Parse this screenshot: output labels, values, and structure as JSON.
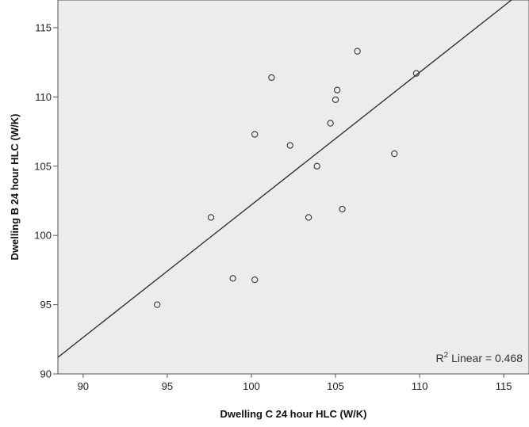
{
  "chart_data": {
    "type": "scatter",
    "xlabel": "Dwelling C 24 hour HLC (W/K)",
    "ylabel": "Dwelling B 24 hour HLC (W/K)",
    "xlim": [
      88.5,
      116.5
    ],
    "ylim": [
      90,
      117
    ],
    "xticks": [
      90,
      95,
      100,
      105,
      110,
      115
    ],
    "yticks": [
      90,
      95,
      100,
      105,
      110,
      115
    ],
    "points": [
      {
        "x": 94.4,
        "y": 95.0
      },
      {
        "x": 97.6,
        "y": 101.3
      },
      {
        "x": 98.9,
        "y": 96.9
      },
      {
        "x": 100.2,
        "y": 96.8
      },
      {
        "x": 100.2,
        "y": 107.3
      },
      {
        "x": 101.2,
        "y": 111.4
      },
      {
        "x": 102.3,
        "y": 106.5
      },
      {
        "x": 103.4,
        "y": 101.3
      },
      {
        "x": 103.9,
        "y": 105.0
      },
      {
        "x": 104.7,
        "y": 108.1
      },
      {
        "x": 105.0,
        "y": 109.8
      },
      {
        "x": 105.1,
        "y": 110.5
      },
      {
        "x": 105.4,
        "y": 101.9
      },
      {
        "x": 106.3,
        "y": 113.3
      },
      {
        "x": 108.5,
        "y": 105.9
      },
      {
        "x": 109.8,
        "y": 111.7
      }
    ],
    "fit_line": {
      "type": "linear",
      "points": [
        {
          "x": 88.5,
          "y": 91.2
        },
        {
          "x": 116.5,
          "y": 118
        }
      ]
    },
    "annotation": {
      "prefix": "R",
      "superscript": "2",
      "suffix": " Linear = 0.468"
    },
    "plot_background": "#ececec",
    "grid": false
  }
}
